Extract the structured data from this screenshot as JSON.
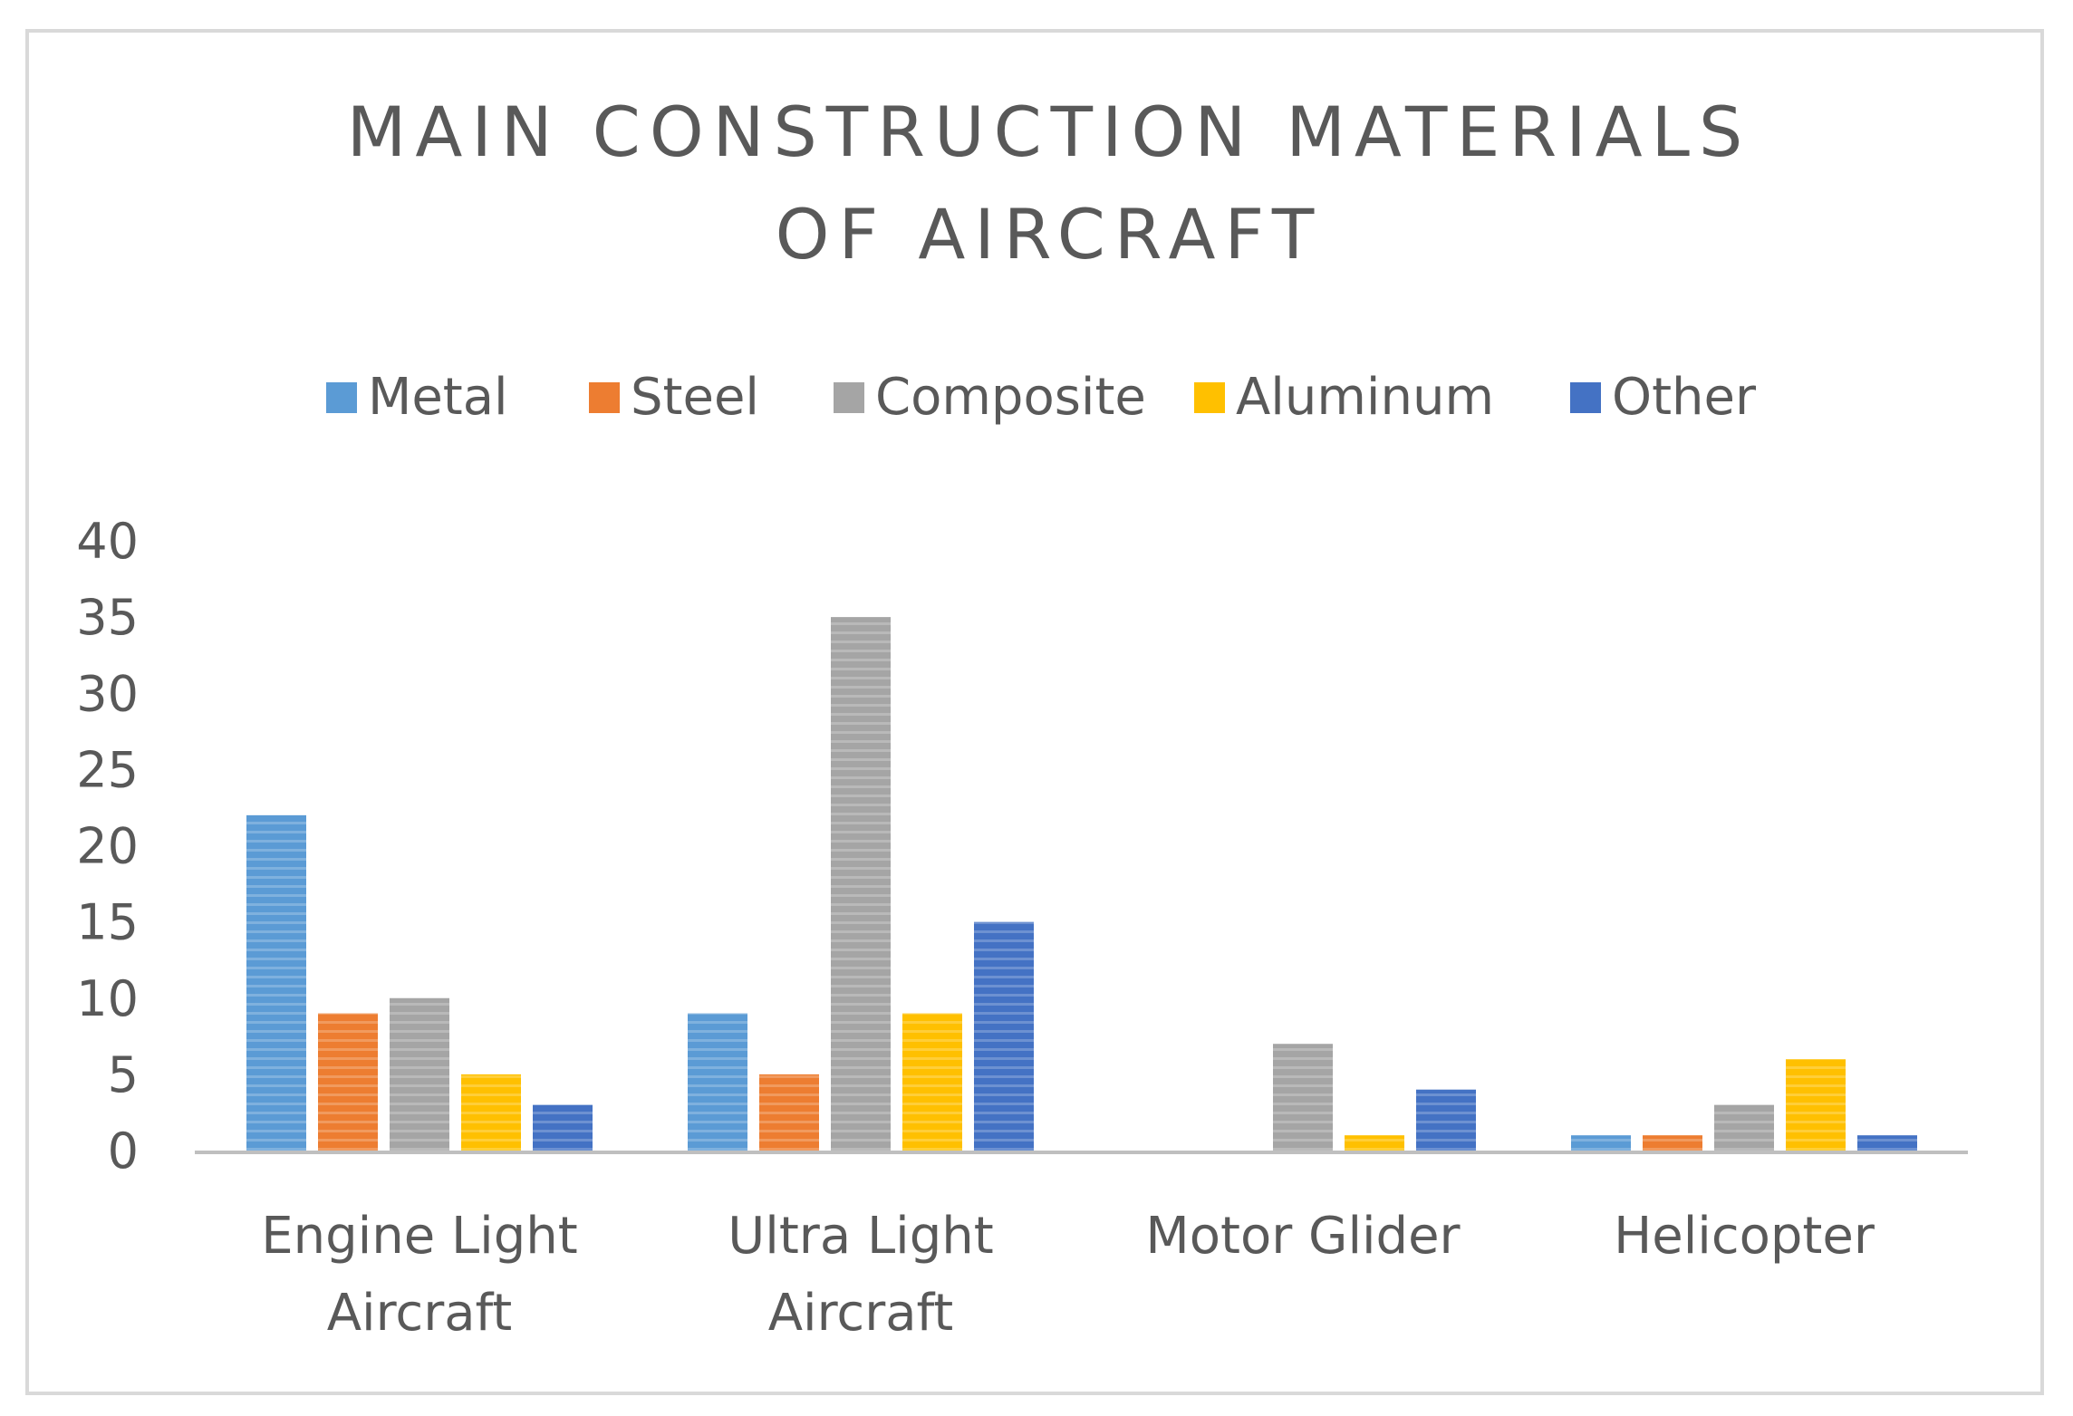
{
  "chart_data": {
    "type": "bar",
    "title_lines": [
      "MAIN CONSTRUCTION MATERIALS",
      "OF AIRCRAFT"
    ],
    "categories": [
      [
        "Engine Light",
        "Aircraft"
      ],
      [
        "Ultra Light",
        "Aircraft"
      ],
      [
        "Motor Glider"
      ],
      [
        "Helicopter"
      ]
    ],
    "series": [
      {
        "name": "Metal",
        "color": "#5b9bd5",
        "values": [
          22,
          9,
          0,
          1
        ]
      },
      {
        "name": "Steel",
        "color": "#ed7d31",
        "values": [
          9,
          5,
          0,
          1
        ]
      },
      {
        "name": "Composite",
        "color": "#a5a5a5",
        "values": [
          10,
          35,
          7,
          3
        ]
      },
      {
        "name": "Aluminum",
        "color": "#ffc000",
        "values": [
          5,
          9,
          1,
          6
        ]
      },
      {
        "name": "Other",
        "color": "#4472c4",
        "values": [
          3,
          15,
          4,
          1
        ]
      }
    ],
    "yticks": [
      "0",
      "5",
      "10",
      "15",
      "20",
      "25",
      "30",
      "35",
      "40"
    ],
    "ylim": [
      0,
      40
    ],
    "xlabel": "",
    "ylabel": "",
    "grid": false,
    "legend_position": "top"
  }
}
